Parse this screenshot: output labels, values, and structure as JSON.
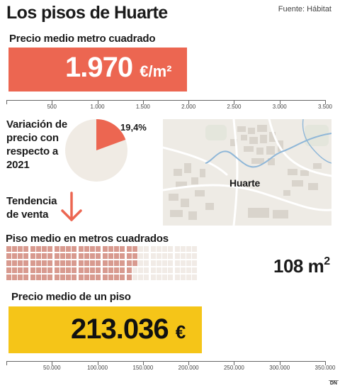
{
  "header": {
    "title": "Los pisos de Huarte",
    "source": "Fuente: Hábitat"
  },
  "price_m2": {
    "label": "Precio medio metro cuadrado",
    "value_number": "1.970",
    "value_unit": "€/m²",
    "value": 1970,
    "axis_ticks": [
      "0",
      "500",
      "1.000",
      "1.500",
      "2.000",
      "2.500",
      "3.000",
      "3.500"
    ],
    "axis_values": [
      0,
      500,
      1000,
      1500,
      2000,
      2500,
      3000,
      3500
    ],
    "axis_max": 3500,
    "color": "#ec6651"
  },
  "variation": {
    "label_lines": [
      "Variación de",
      "precio con",
      "respecto a",
      "2021"
    ],
    "percent_label": "19,4%",
    "percent": 19.4,
    "pie_color": "#ec6651",
    "pie_bg_color": "#f0ebe4"
  },
  "trend": {
    "label_lines": [
      "Tendencia",
      "de venta"
    ],
    "direction_icon": "arrow-down-icon",
    "color": "#ec6651"
  },
  "map": {
    "place_label": "Huarte"
  },
  "flat_size": {
    "label": "Piso medio en metros cuadrados",
    "value_number": "108",
    "value_unit": "m",
    "value_unit_sup": "2",
    "value": 108,
    "total_cells": 160,
    "filled_color": "#d89a8f",
    "empty_color": "#f1ebe6"
  },
  "flat_price": {
    "label": "Precio medio de un piso",
    "value_number": "213.036",
    "value_unit": "€",
    "value": 213036,
    "axis_ticks": [
      "0",
      "50.000",
      "100.000",
      "150.000",
      "200.000",
      "250.000",
      "300.000",
      "350.000"
    ],
    "axis_values": [
      0,
      50000,
      100000,
      150000,
      200000,
      250000,
      300000,
      350000
    ],
    "axis_max": 350000,
    "color": "#f5c518"
  },
  "footer": {
    "brand": "DN"
  }
}
